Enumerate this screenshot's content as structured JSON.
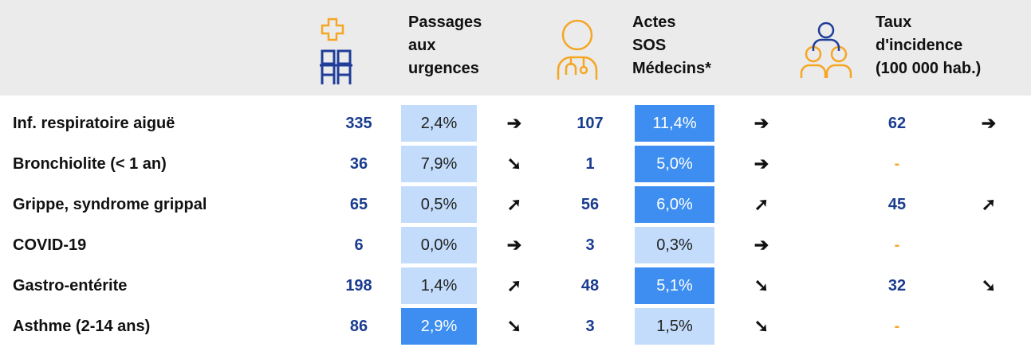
{
  "header": {
    "columns": [
      {
        "lines": [
          "Passages",
          "aux",
          "urgences"
        ]
      },
      {
        "lines": [
          "Actes",
          "SOS",
          "Médecins*"
        ]
      },
      {
        "lines": [
          "Taux",
          "d'incidence",
          "(100 000 hab.)"
        ]
      }
    ]
  },
  "rows": [
    {
      "label": "Inf. respiratoire aiguë",
      "urg_count": 335,
      "urg_pct": {
        "text": "2,4%",
        "color": "#c3dcfb"
      },
      "urg_trend": "➔",
      "sos_count": 107,
      "sos_pct": {
        "text": "11,4%",
        "color": "#3d8ef0"
      },
      "sos_trend": "➔",
      "rate": 62,
      "rate_trend": "➔"
    },
    {
      "label": "Bronchiolite (< 1 an)",
      "urg_count": 36,
      "urg_pct": {
        "text": "7,9%",
        "color": "#c3dcfb"
      },
      "urg_trend": "➘",
      "sos_count": 1,
      "sos_pct": {
        "text": "5,0%",
        "color": "#3d8ef0"
      },
      "sos_trend": "➔",
      "rate": "-"
    },
    {
      "label": "Grippe, syndrome grippal",
      "urg_count": 65,
      "urg_pct": {
        "text": "0,5%",
        "color": "#c3dcfb"
      },
      "urg_trend": "➚",
      "sos_count": 56,
      "sos_pct": {
        "text": "6,0%",
        "color": "#3d8ef0"
      },
      "sos_trend": "➚",
      "rate": 45,
      "rate_trend": "➚"
    },
    {
      "label": "COVID-19",
      "urg_count": 6,
      "urg_pct": {
        "text": "0,0%",
        "color": "#c3dcfb"
      },
      "urg_trend": "➔",
      "sos_count": 3,
      "sos_pct": {
        "text": "0,3%",
        "color": "#c3dcfb"
      },
      "sos_trend": "➔",
      "rate": "-"
    },
    {
      "label": "Gastro-entérite",
      "urg_count": 198,
      "urg_pct": {
        "text": "1,4%",
        "color": "#c3dcfb"
      },
      "urg_trend": "➚",
      "sos_count": 48,
      "sos_pct": {
        "text": "5,1%",
        "color": "#3d8ef0"
      },
      "sos_trend": "➘",
      "rate": 32,
      "rate_trend": "➘"
    },
    {
      "label": "Asthme (2-14 ans)",
      "urg_count": 86,
      "urg_pct": {
        "text": "2,9%",
        "color": "#3d8ef0"
      },
      "urg_trend": "➘",
      "sos_count": 3,
      "sos_pct": {
        "text": "1,5%",
        "color": "#c3dcfb"
      },
      "sos_trend": "➘",
      "rate": "-"
    }
  ]
}
